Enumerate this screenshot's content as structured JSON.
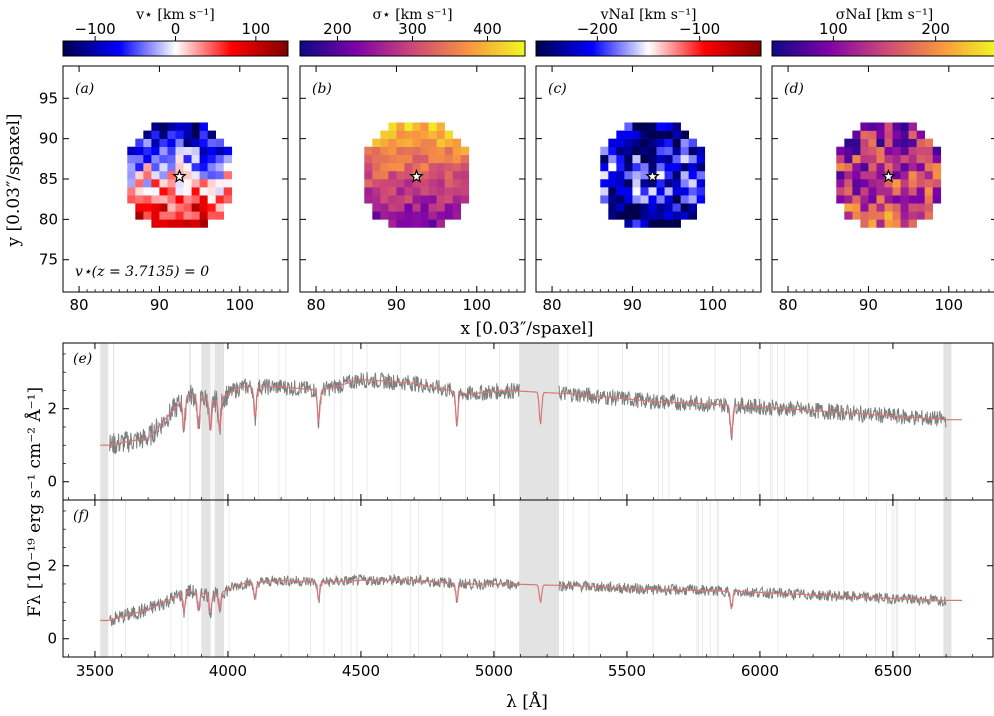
{
  "colorbars": [
    {
      "label": "v⋆ [km s⁻¹]",
      "ticks": [
        "−100",
        "0",
        "100"
      ],
      "tick_values": [
        -100,
        0,
        100
      ],
      "range": [
        -140,
        140
      ],
      "cmap": "seismic"
    },
    {
      "label": "σ⋆ [km s⁻¹]",
      "ticks": [
        "200",
        "300",
        "400"
      ],
      "tick_values": [
        200,
        300,
        400
      ],
      "range": [
        150,
        450
      ],
      "cmap": "plasma"
    },
    {
      "label": "vNaI [km s⁻¹]",
      "ticks": [
        "−200",
        "−100"
      ],
      "tick_values": [
        -200,
        -100
      ],
      "range": [
        -260,
        -40
      ],
      "cmap": "seismic"
    },
    {
      "label": "σNaI [km s⁻¹]",
      "ticks": [
        "100",
        "200"
      ],
      "tick_values": [
        100,
        200
      ],
      "range": [
        40,
        260
      ],
      "cmap": "plasma"
    }
  ],
  "panels": [
    {
      "letter": "(a)",
      "annotation": "v⋆(z = 3.7135) = 0"
    },
    {
      "letter": "(b)",
      "annotation": ""
    },
    {
      "letter": "(c)",
      "annotation": ""
    },
    {
      "letter": "(d)",
      "annotation": ""
    }
  ],
  "map_axes": {
    "xlabel": "x [0.03″/spaxel]",
    "ylabel": "y [0.03″/spaxel]",
    "xticks": [
      "80",
      "90",
      "100"
    ],
    "yticks": [
      "75",
      "80",
      "85",
      "90",
      "95"
    ],
    "xlim": [
      78,
      106
    ],
    "ylim": [
      71,
      99
    ],
    "center": [
      92.5,
      85.3
    ]
  },
  "spectra": {
    "panel_e": "(e)",
    "panel_f": "(f)",
    "xlabel": "λ [Å]",
    "ylabel": "Fλ [10⁻¹⁹ erg s⁻¹ cm⁻² Å⁻¹]",
    "xticks": [
      "3500",
      "4000",
      "4500",
      "5000",
      "5500",
      "6000",
      "6500"
    ],
    "yticks": [
      "0",
      "2"
    ],
    "xlim": [
      3380,
      6880
    ],
    "ylim_e": [
      -0.5,
      3.8
    ],
    "ylim_f": [
      -0.5,
      3.8
    ],
    "masked_regions": [
      [
        3520,
        3550
      ],
      [
        3900,
        3935
      ],
      [
        3950,
        3985
      ],
      [
        5095,
        5245
      ],
      [
        6690,
        6720
      ]
    ]
  },
  "chart_data": {
    "type": "line",
    "title": "",
    "xlabel": "λ [Å]",
    "ylabel": "Fλ [10⁻¹⁹ erg s⁻¹ cm⁻² Å⁻¹]",
    "x": [
      3550,
      3700,
      3850,
      3950,
      4050,
      4200,
      4350,
      4500,
      4700,
      4900,
      5050,
      5300,
      5600,
      5900,
      6200,
      6500,
      6700
    ],
    "series": [
      {
        "values": [
          1.0,
          1.2,
          2.4,
          2.2,
          2.6,
          2.6,
          2.5,
          2.8,
          2.7,
          2.4,
          2.5,
          2.4,
          2.2,
          2.1,
          1.95,
          1.8,
          1.7
        ]
      },
      {
        "values": [
          0.5,
          0.8,
          1.3,
          1.2,
          1.5,
          1.6,
          1.55,
          1.6,
          1.6,
          1.5,
          1.5,
          1.45,
          1.35,
          1.3,
          1.2,
          1.1,
          1.05
        ]
      }
    ],
    "ylim": [
      -0.5,
      3.8
    ],
    "xlim": [
      3380,
      6880
    ]
  }
}
